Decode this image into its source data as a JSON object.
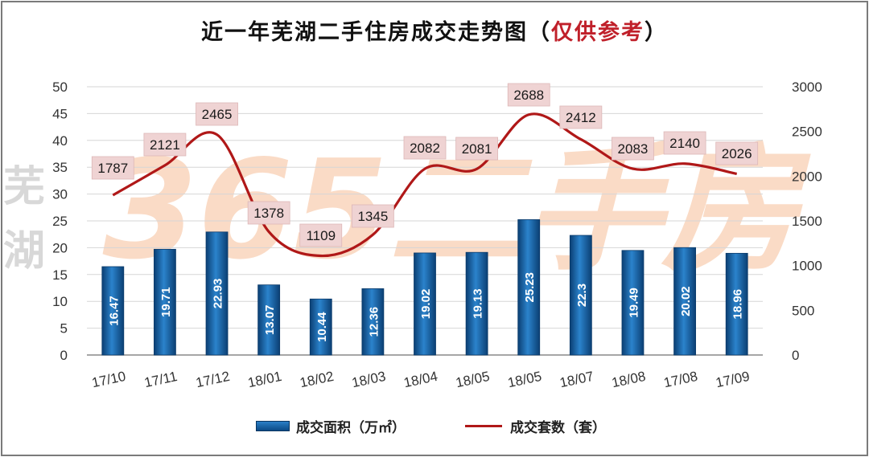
{
  "title": {
    "main": "近一年芜湖二手住房成交走势图",
    "open": "（",
    "note": "仅供参考",
    "close": "）"
  },
  "watermark": {
    "text": "365二手房",
    "side_text": "芜湖",
    "color": "#f5b080"
  },
  "colors": {
    "bar": "#1663a8",
    "line": "#b01818",
    "label_bg": "#efd3d3",
    "frame": "#7a7a7a"
  },
  "chart_data": {
    "type": "bar+line",
    "categories": [
      "17/10",
      "17/11",
      "17/12",
      "18/01",
      "18/02",
      "18/03",
      "18/04",
      "18/05",
      "18/05",
      "18/07",
      "18/08",
      "17/08",
      "17/09"
    ],
    "series": [
      {
        "name": "成交面积（万㎡）",
        "type": "bar",
        "axis": "left",
        "values": [
          16.47,
          19.71,
          22.93,
          13.07,
          10.44,
          12.36,
          19.02,
          19.13,
          25.23,
          22.3,
          19.49,
          20.02,
          18.96
        ],
        "labels": [
          "16.47",
          "19.71",
          "22.93",
          "13.07",
          "10.44",
          "12.36",
          "19.02",
          "19.13",
          "25.23",
          "22.3",
          "19.49",
          "20.02",
          "18.96"
        ]
      },
      {
        "name": "成交套数（套）",
        "type": "line",
        "axis": "right",
        "values": [
          1787,
          2121,
          2465,
          1378,
          1109,
          1345,
          2082,
          2081,
          2688,
          2412,
          2083,
          2140,
          2026
        ],
        "labels": [
          "1787",
          "2121",
          "2465",
          "1378",
          "1109",
          "1345",
          "2082",
          "2081",
          "2688",
          "2412",
          "2083",
          "2140",
          "2026"
        ]
      }
    ],
    "y_left": {
      "min": 0,
      "max": 50,
      "step": 5,
      "ticks": [
        "0",
        "5",
        "10",
        "15",
        "20",
        "25",
        "30",
        "35",
        "40",
        "45",
        "50"
      ]
    },
    "y_right": {
      "min": 0,
      "max": 3000,
      "step": 500,
      "ticks": [
        "0",
        "500",
        "1000",
        "1500",
        "2000",
        "2500",
        "3000"
      ]
    },
    "grid": true,
    "legend": "bottom"
  }
}
